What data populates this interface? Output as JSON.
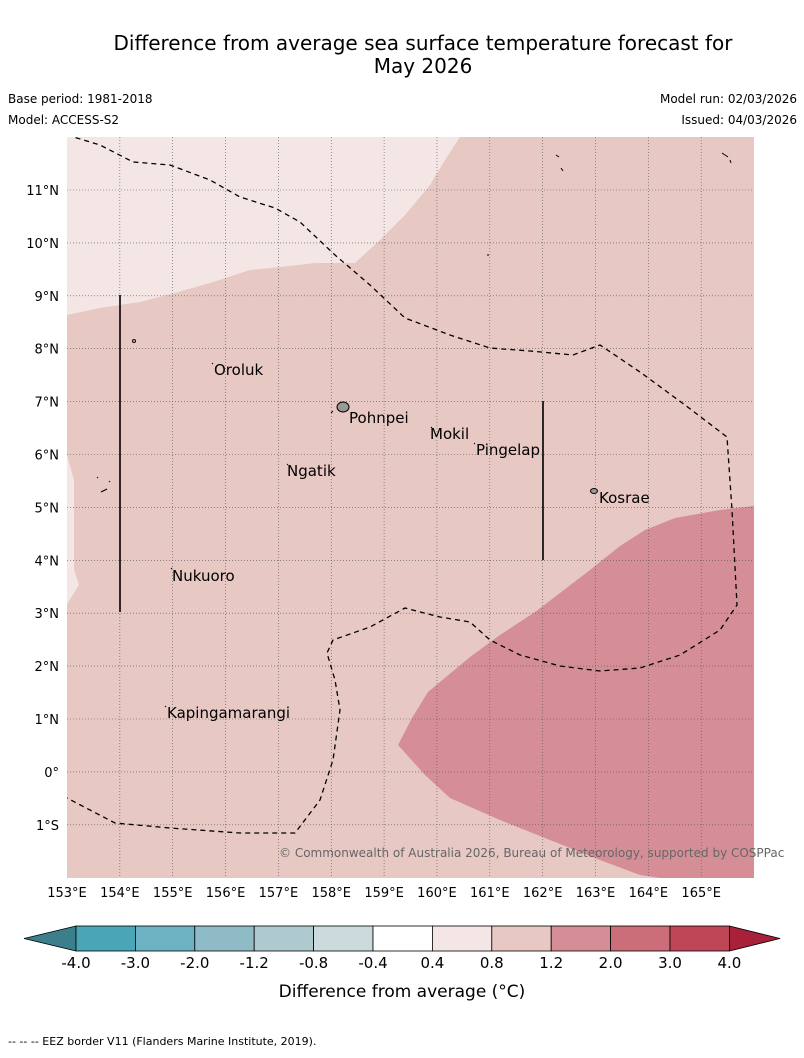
{
  "title_line1": "Difference from average sea surface temperature forecast for",
  "title_line2": "May 2026",
  "meta": {
    "base_period": "Base period: 1981-2018",
    "model": "Model: ACCESS-S2",
    "model_run": "Model run: 02/03/2026",
    "issued": "Issued: 04/03/2026"
  },
  "map": {
    "lon_labels": [
      "153°E",
      "154°E",
      "155°E",
      "156°E",
      "157°E",
      "158°E",
      "159°E",
      "160°E",
      "161°E",
      "162°E",
      "163°E",
      "164°E",
      "165°E"
    ],
    "lat_labels": [
      "11°N",
      "10°N",
      "9°N",
      "8°N",
      "7°N",
      "6°N",
      "5°N",
      "4°N",
      "3°N",
      "2°N",
      "1°N",
      "0°",
      "1°S"
    ],
    "places": [
      "Oroluk",
      "Pohnpei",
      "Mokil",
      "Pingelap",
      "Ngatik",
      "Kosrae",
      "Nukuoro",
      "Kapingamarangi"
    ],
    "copyright": "© Commonwealth of Australia 2026, Bureau of Meteorology, supported by COSPPac",
    "colors": {
      "band_0_4_0_8": "#f4e6e5",
      "band_0_8_1_2": "#e7c8c3",
      "band_1_2_2_0": "#d58e96"
    }
  },
  "colorbar": {
    "tick_labels": [
      "-4.0",
      "-3.0",
      "-2.0",
      "-1.2",
      "-0.8",
      "-0.4",
      "0.4",
      "0.8",
      "1.2",
      "2.0",
      "3.0",
      "4.0"
    ],
    "colors": [
      "#3b7f8c",
      "#4aa6b6",
      "#6cb2c2",
      "#8ebbc6",
      "#aecace",
      "#cbdadd",
      "#ffffff",
      "#f4e6e5",
      "#e7c8c3",
      "#d58e96",
      "#cb6e79",
      "#be4656",
      "#a8203a"
    ],
    "label": "Difference from average (°C)"
  },
  "footer": "--  --  -- EEZ border V11 (Flanders Marine Institute, 2019)."
}
